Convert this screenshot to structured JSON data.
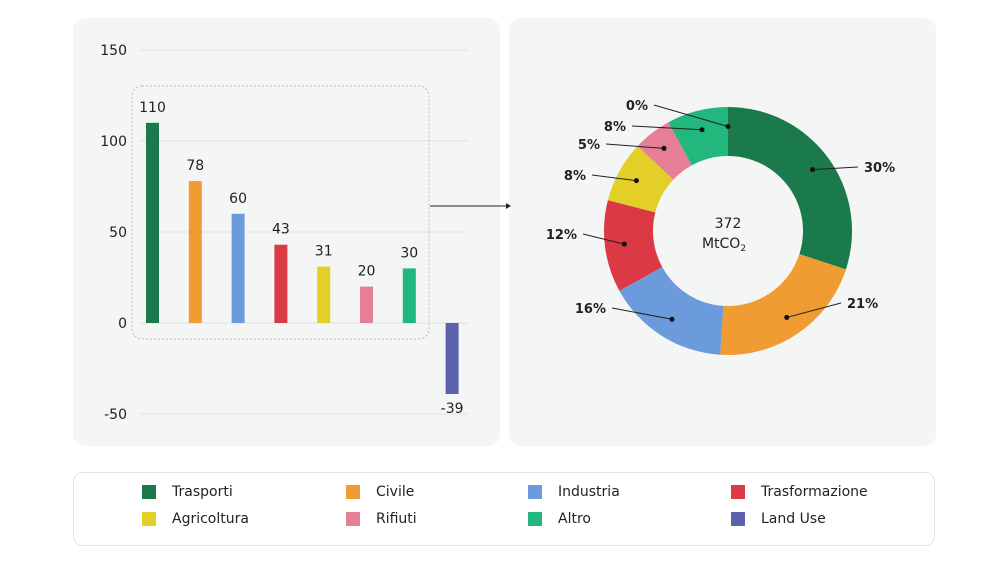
{
  "chart_data": [
    {
      "type": "bar",
      "categories": [
        "Trasporti",
        "Civile",
        "Industria",
        "Trasformazione",
        "Agricoltura",
        "Rifiuti",
        "Altro",
        "Land Use"
      ],
      "values": [
        110,
        78,
        60,
        43,
        31,
        20,
        30,
        -39
      ],
      "value_labels": [
        "110",
        "78",
        "60",
        "43",
        "31",
        "20",
        "30",
        "-39"
      ],
      "colors": [
        "#1a7a4c",
        "#f09c33",
        "#6b9bdc",
        "#db3a44",
        "#e3cf28",
        "#e57f97",
        "#21b77d",
        "#5a62ad"
      ],
      "ylim": [
        -50,
        150
      ],
      "yticks": [
        150,
        100,
        50,
        0,
        -50
      ],
      "ytick_labels": [
        "150",
        "100",
        "50",
        "0",
        "-50"
      ],
      "grid": true
    },
    {
      "type": "pie",
      "variant": "donut",
      "categories": [
        "Trasporti",
        "Civile",
        "Industria",
        "Trasformazione",
        "Agricoltura",
        "Rifiuti",
        "Altro",
        "Land Use"
      ],
      "values": [
        30,
        21,
        16,
        12,
        8,
        5,
        8,
        0
      ],
      "labels": [
        "30%",
        "21%",
        "16%",
        "12%",
        "8%",
        "5%",
        "8%",
        "0%"
      ],
      "colors": [
        "#1a7a4c",
        "#f09c33",
        "#6b9bdc",
        "#db3a44",
        "#e3cf28",
        "#e57f97",
        "#21b77d",
        "#5a62ad"
      ],
      "center_value": "372",
      "center_unit": "MtCO",
      "center_unit_sub": "2"
    }
  ],
  "legend": [
    {
      "label": "Trasporti",
      "color": "#1a7a4c"
    },
    {
      "label": "Civile",
      "color": "#f09c33"
    },
    {
      "label": "Industria",
      "color": "#6b9bdc"
    },
    {
      "label": "Trasformazione",
      "color": "#db3a44"
    },
    {
      "label": "Agricoltura",
      "color": "#e3cf28"
    },
    {
      "label": "Rifiuti",
      "color": "#e57f97"
    },
    {
      "label": "Altro",
      "color": "#21b77d"
    },
    {
      "label": "Land Use",
      "color": "#5a62ad"
    }
  ]
}
